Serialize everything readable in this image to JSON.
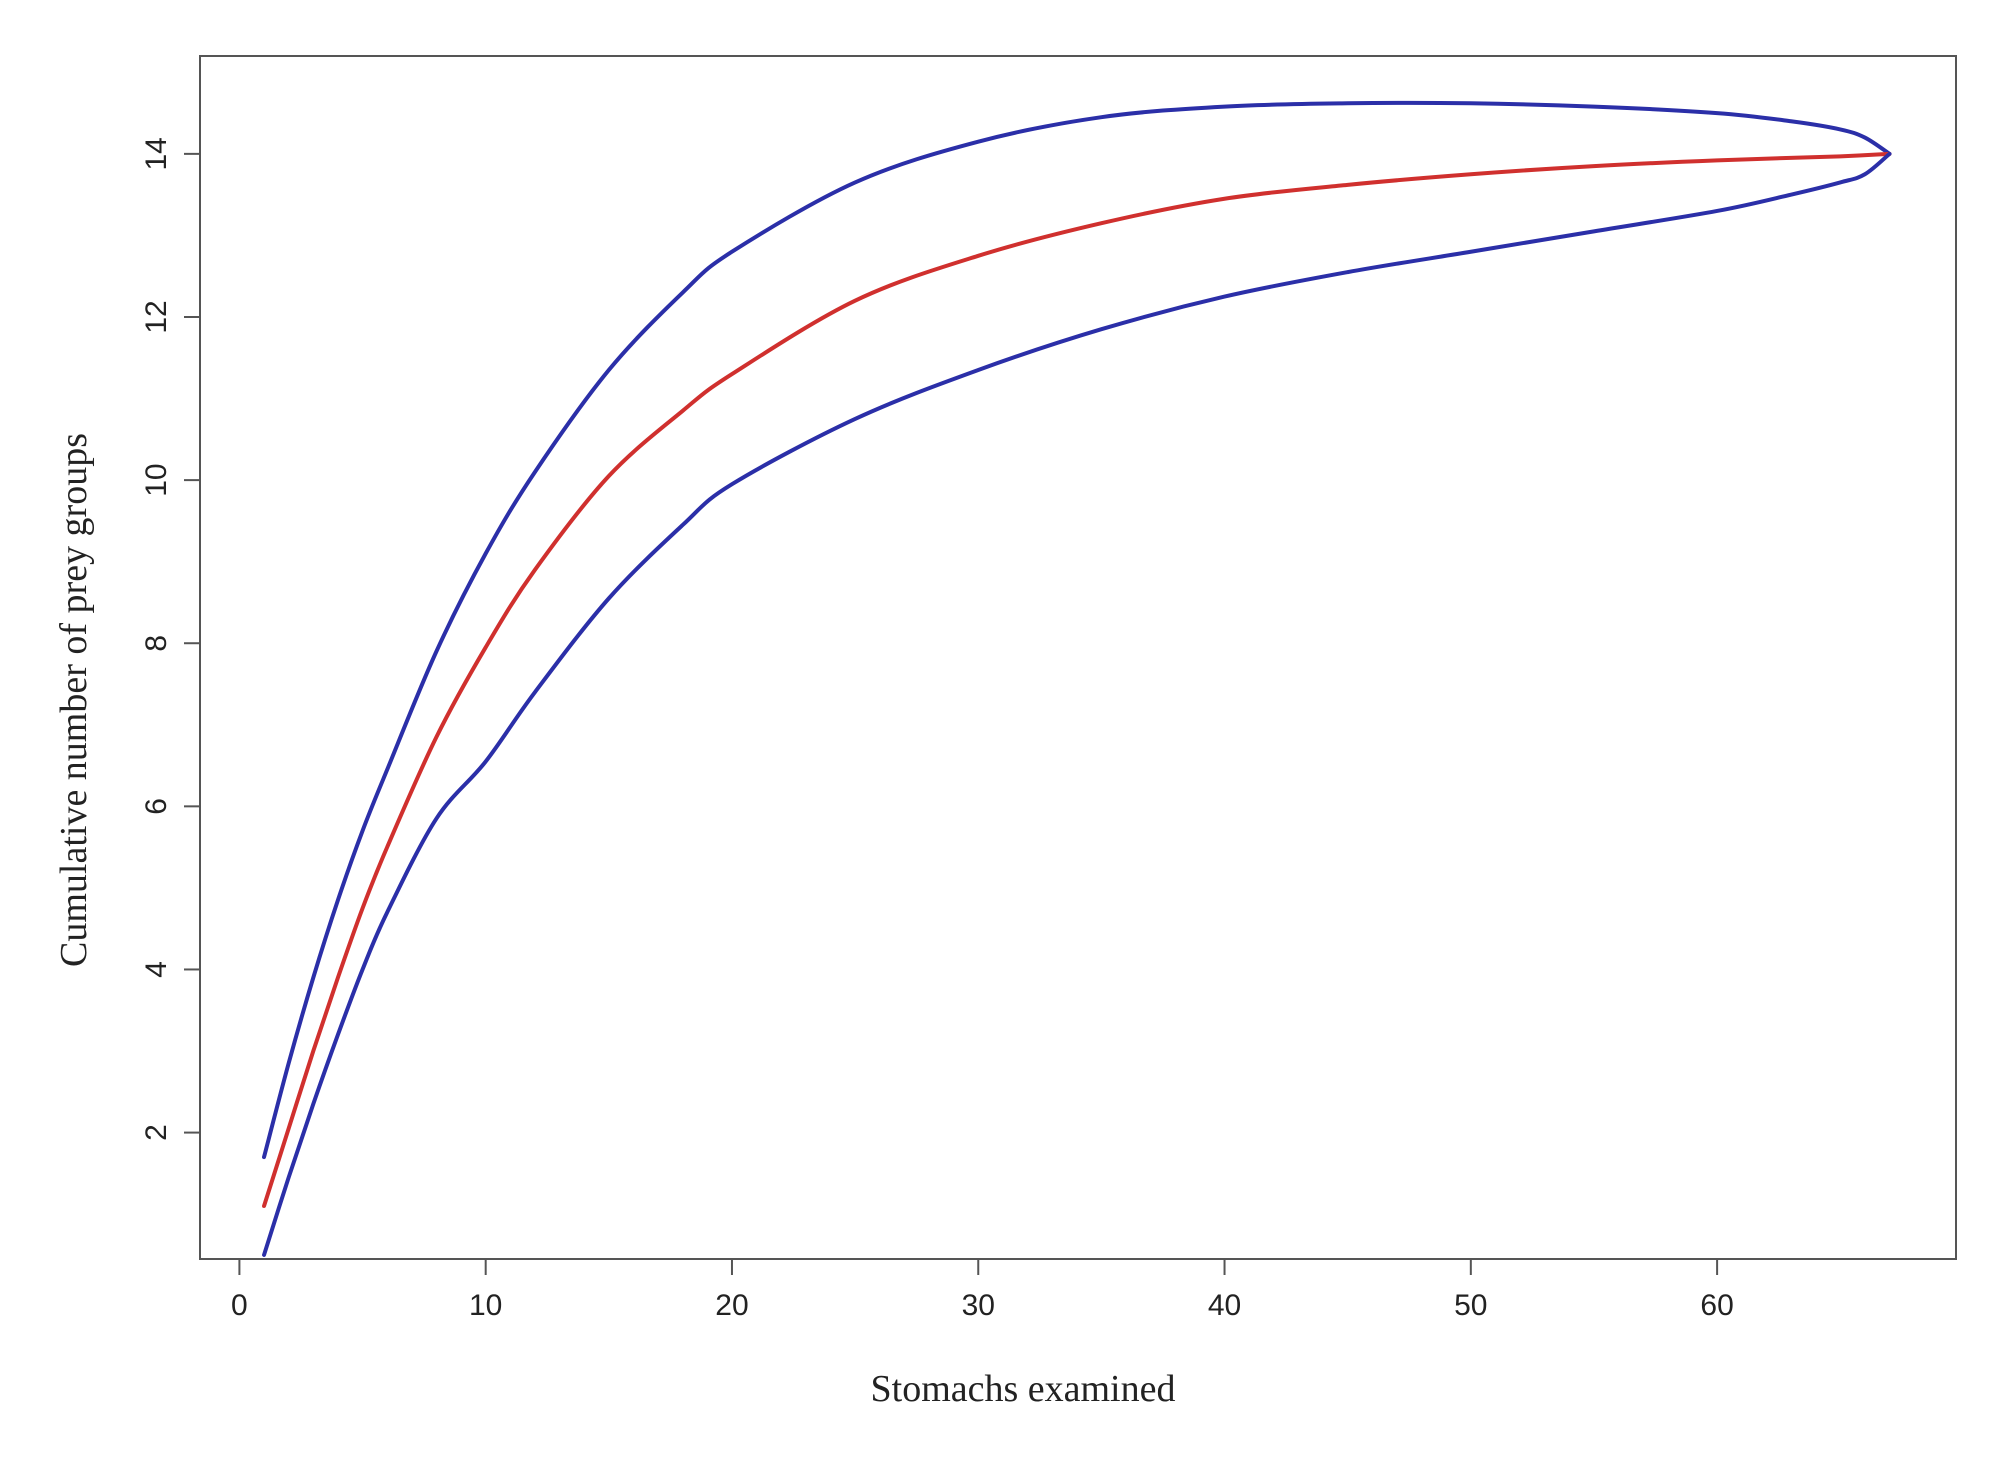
{
  "chart_data": {
    "type": "line",
    "title": "",
    "xlabel": "Stomachs  examined",
    "ylabel": "Cumulative number of prey groups",
    "xlim": [
      -1.6,
      69.7
    ],
    "ylim": [
      0.45,
      15.2
    ],
    "xticks": [
      0,
      10,
      20,
      30,
      40,
      50,
      60
    ],
    "yticks": [
      2,
      4,
      6,
      8,
      10,
      12,
      14
    ],
    "xtick_labels": [
      "0",
      "10",
      "20",
      "30",
      "40",
      "50",
      "60"
    ],
    "ytick_labels": [
      "2",
      "4",
      "6",
      "8",
      "10",
      "12",
      "14"
    ],
    "grid": false,
    "legend": "none",
    "series": [
      {
        "role": "upper-bound",
        "color": "#2b2fa8",
        "x": [
          1,
          2,
          3,
          4,
          5,
          6,
          8,
          10,
          12,
          15,
          18,
          20,
          25,
          30,
          35,
          40,
          45,
          50,
          55,
          60,
          63,
          65,
          66,
          67
        ],
        "y": [
          1.7,
          2.85,
          3.9,
          4.85,
          5.7,
          6.45,
          7.9,
          9.1,
          10.1,
          11.35,
          12.3,
          12.8,
          13.65,
          14.15,
          14.45,
          14.58,
          14.62,
          14.62,
          14.58,
          14.5,
          14.4,
          14.3,
          14.2,
          14.0
        ]
      },
      {
        "role": "mean",
        "color": "#d0302e",
        "x": [
          1,
          2,
          3,
          4,
          5,
          6,
          8,
          10,
          12,
          15,
          18,
          20,
          25,
          30,
          35,
          40,
          45,
          50,
          55,
          60,
          65,
          67
        ],
        "y": [
          1.1,
          2.05,
          3.0,
          3.9,
          4.75,
          5.5,
          6.85,
          7.95,
          8.9,
          10.05,
          10.85,
          11.3,
          12.2,
          12.75,
          13.15,
          13.45,
          13.62,
          13.75,
          13.85,
          13.92,
          13.97,
          14.0
        ]
      },
      {
        "role": "lower-bound",
        "color": "#2b2fa8",
        "x": [
          1,
          2,
          3,
          4,
          5,
          6,
          8,
          10,
          12,
          15,
          18,
          20,
          25,
          30,
          35,
          40,
          45,
          50,
          55,
          60,
          63,
          65,
          66,
          67
        ],
        "y": [
          0.5,
          1.45,
          2.35,
          3.2,
          4.0,
          4.7,
          5.85,
          6.55,
          7.4,
          8.55,
          9.45,
          9.95,
          10.75,
          11.35,
          11.85,
          12.25,
          12.55,
          12.8,
          13.05,
          13.3,
          13.5,
          13.65,
          13.75,
          14.0
        ]
      }
    ]
  }
}
